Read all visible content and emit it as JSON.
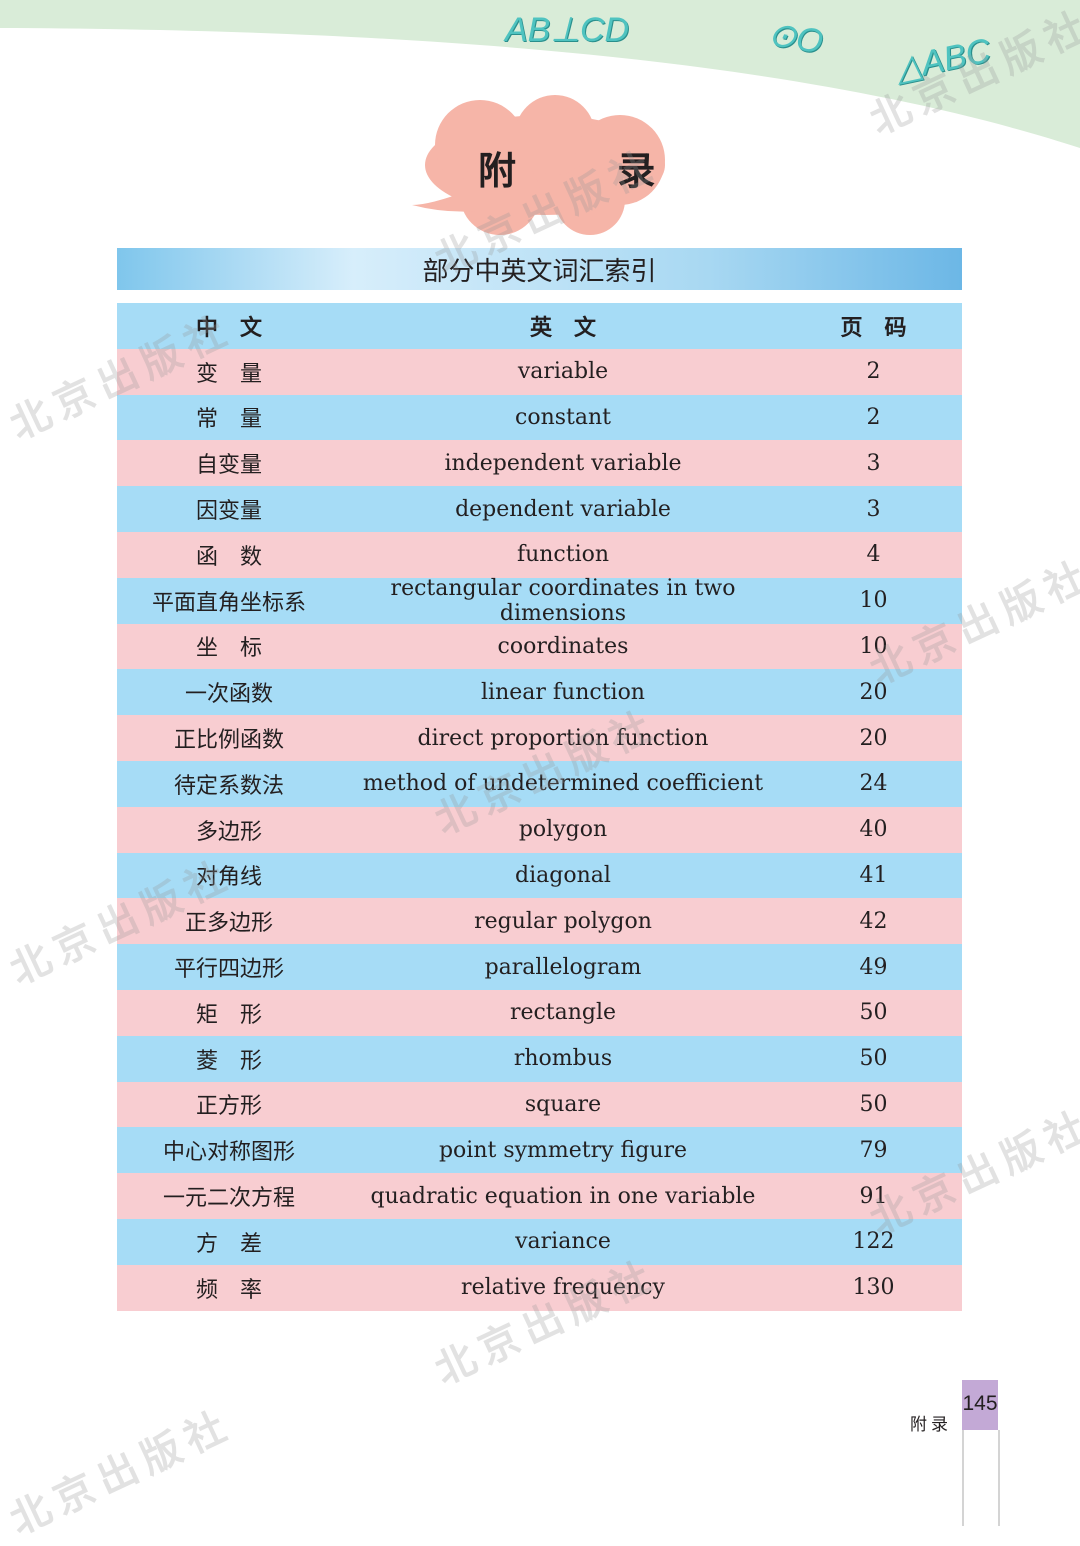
{
  "decorations": {
    "top_symbols": [
      "AB⊥CD",
      "⊙O",
      "△ABC"
    ],
    "colors": {
      "wave": "#d9ecd8",
      "cloud": "#f6b5a8",
      "row_blue": "#a6dcf6",
      "row_pink": "#f8cdd1",
      "page_tab": "#c3a9d6"
    }
  },
  "page_title": "附 录",
  "section_title": "部分中英文词汇索引",
  "table": {
    "headers": [
      "中　文",
      "英　文",
      "页　码"
    ],
    "rows": [
      {
        "zh": "变　量",
        "en": "variable",
        "page": "2"
      },
      {
        "zh": "常　量",
        "en": "constant",
        "page": "2"
      },
      {
        "zh": "自变量",
        "en": "independent variable",
        "page": "3"
      },
      {
        "zh": "因变量",
        "en": "dependent variable",
        "page": "3"
      },
      {
        "zh": "函　数",
        "en": "function",
        "page": "4"
      },
      {
        "zh": "平面直角坐标系",
        "en": "rectangular coordinates in two dimensions",
        "page": "10"
      },
      {
        "zh": "坐　标",
        "en": "coordinates",
        "page": "10"
      },
      {
        "zh": "一次函数",
        "en": "linear function",
        "page": "20"
      },
      {
        "zh": "正比例函数",
        "en": "direct proportion function",
        "page": "20"
      },
      {
        "zh": "待定系数法",
        "en": "method of undetermined coefficient",
        "page": "24"
      },
      {
        "zh": "多边形",
        "en": "polygon",
        "page": "40"
      },
      {
        "zh": "对角线",
        "en": "diagonal",
        "page": "41"
      },
      {
        "zh": "正多边形",
        "en": "regular polygon",
        "page": "42"
      },
      {
        "zh": "平行四边形",
        "en": "parallelogram",
        "page": "49"
      },
      {
        "zh": "矩　形",
        "en": "rectangle",
        "page": "50"
      },
      {
        "zh": "菱　形",
        "en": "rhombus",
        "page": "50"
      },
      {
        "zh": "正方形",
        "en": "square",
        "page": "50"
      },
      {
        "zh": "中心对称图形",
        "en": "point symmetry figure",
        "page": "79"
      },
      {
        "zh": "一元二次方程",
        "en": "quadratic equation in one variable",
        "page": "91"
      },
      {
        "zh": "方　差",
        "en": "variance",
        "page": "122"
      },
      {
        "zh": "频　率",
        "en": "relative frequency",
        "page": "130"
      }
    ]
  },
  "footer": {
    "section_label": "附录",
    "page_number": "145"
  },
  "watermark": "北京出版社"
}
